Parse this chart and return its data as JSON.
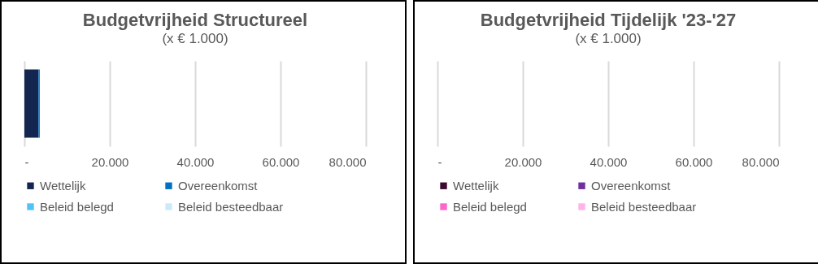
{
  "chart_data": [
    {
      "type": "bar",
      "orientation": "horizontal",
      "stacked": true,
      "title": "Budgetvrijheid Structureel",
      "subtitle": "(x € 1.000)",
      "categories": [
        null
      ],
      "series": [
        {
          "name": "Wettelijk",
          "color": "#14254f",
          "values": [
            3300
          ]
        },
        {
          "name": "Overeenkomst",
          "color": "#0070c0",
          "values": [
            300
          ]
        },
        {
          "name": "Beleid belegd",
          "color": "#4fc3f7",
          "values": [
            0
          ]
        },
        {
          "name": "Beleid besteedbaar",
          "color": "#cce9fa",
          "values": [
            0
          ]
        }
      ],
      "xlim": [
        0,
        80000
      ],
      "xticks": [
        {
          "value": 0,
          "label": "-"
        },
        {
          "value": 20000,
          "label": "20.000"
        },
        {
          "value": 40000,
          "label": "40.000"
        },
        {
          "value": 60000,
          "label": "60.000"
        },
        {
          "value": 80000,
          "label": "80.000"
        }
      ],
      "grid": "x",
      "legend": "bottom"
    },
    {
      "type": "bar",
      "orientation": "horizontal",
      "stacked": true,
      "title": "Budgetvrijheid Tijdelijk '23-'27",
      "subtitle": "(x € 1.000)",
      "categories": [
        null
      ],
      "series": [
        {
          "name": "Wettelijk",
          "color": "#3c0a2e",
          "values": [
            0
          ]
        },
        {
          "name": "Overeenkomst",
          "color": "#7030a0",
          "values": [
            0
          ]
        },
        {
          "name": "Beleid belegd",
          "color": "#ff66cc",
          "values": [
            0
          ]
        },
        {
          "name": "Beleid besteedbaar",
          "color": "#ffb3e6",
          "values": [
            0
          ]
        }
      ],
      "xlim": [
        0,
        80000
      ],
      "xticks": [
        {
          "value": 0,
          "label": "-"
        },
        {
          "value": 20000,
          "label": "20.000"
        },
        {
          "value": 40000,
          "label": "40.000"
        },
        {
          "value": 60000,
          "label": "60.000"
        },
        {
          "value": 80000,
          "label": "80.000"
        }
      ],
      "grid": "x",
      "legend": "bottom"
    }
  ]
}
